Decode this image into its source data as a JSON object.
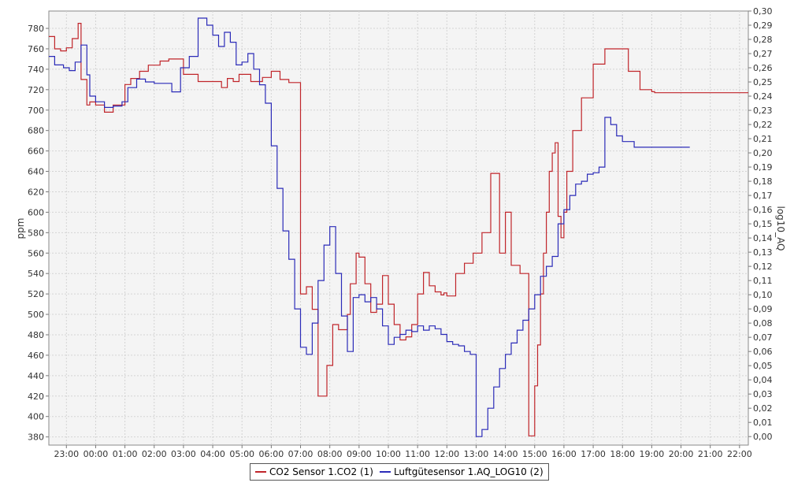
{
  "chart_data": {
    "type": "line",
    "title": "",
    "xlabel": "",
    "ylabel_left": "ppm",
    "ylabel_right": "log10_AQ",
    "grid": true,
    "legend_placement": "bottom-center",
    "x_tick_labels": [
      "23:00",
      "00:00",
      "01:00",
      "02:00",
      "03:00",
      "04:00",
      "05:00",
      "06:00",
      "07:00",
      "08:00",
      "09:00",
      "10:00",
      "11:00",
      "12:00",
      "13:00",
      "14:00",
      "15:00",
      "16:00",
      "17:00",
      "18:00",
      "19:00",
      "20:00",
      "21:00",
      "22:00"
    ],
    "x_range_hours": [
      22.4,
      46.3
    ],
    "y_left_range": [
      372,
      797
    ],
    "y_left_ticks": [
      "380",
      "400",
      "420",
      "440",
      "460",
      "480",
      "500",
      "520",
      "540",
      "560",
      "580",
      "600",
      "620",
      "640",
      "660",
      "680",
      "700",
      "720",
      "740",
      "760",
      "780"
    ],
    "y_right_range": [
      -0.006,
      0.3
    ],
    "y_right_ticks": [
      "0,00",
      "0,01",
      "0,02",
      "0,03",
      "0,04",
      "0,05",
      "0,06",
      "0,07",
      "0,08",
      "0,09",
      "0,10",
      "0,11",
      "0,12",
      "0,13",
      "0,14",
      "0,15",
      "0,16",
      "0,17",
      "0,18",
      "0,19",
      "0,20",
      "0,21",
      "0,22",
      "0,23",
      "0,24",
      "0,25",
      "0,26",
      "0,27",
      "0,28",
      "0,29",
      "0,30"
    ],
    "series": [
      {
        "name": "CO2 Sensor 1.CO2 (1)",
        "axis": "left",
        "color": "#c0252a",
        "x": [
          22.4,
          22.6,
          22.8,
          23.0,
          23.2,
          23.4,
          23.5,
          23.7,
          23.8,
          24.0,
          24.3,
          24.6,
          25.0,
          25.2,
          25.5,
          25.8,
          26.2,
          26.5,
          27.0,
          27.5,
          28.0,
          28.3,
          28.5,
          28.7,
          28.9,
          29.3,
          29.7,
          30.0,
          30.3,
          30.6,
          31.0,
          31.2,
          31.4,
          31.6,
          31.9,
          32.1,
          32.3,
          32.6,
          32.7,
          32.9,
          33.0,
          33.2,
          33.4,
          33.6,
          33.8,
          34.0,
          34.2,
          34.4,
          34.6,
          34.8,
          35.0,
          35.2,
          35.4,
          35.6,
          35.8,
          35.9,
          36.0,
          36.3,
          36.6,
          36.9,
          37.2,
          37.5,
          37.8,
          38.0,
          38.2,
          38.5,
          38.8,
          39.0,
          39.1,
          39.2,
          39.3,
          39.4,
          39.5,
          39.6,
          39.7,
          39.8,
          39.9,
          40.0,
          40.1,
          40.3,
          40.6,
          41.0,
          41.4,
          41.8,
          42.2,
          42.6,
          43.0,
          43.1,
          43.3,
          43.5,
          43.8,
          44.0,
          44.3,
          44.6,
          44.9,
          45.0,
          45.2,
          45.4,
          45.6,
          45.8,
          46.0,
          46.3
        ],
        "y": [
          772,
          760,
          758,
          761,
          770,
          785,
          730,
          705,
          708,
          705,
          698,
          705,
          725,
          731,
          738,
          744,
          748,
          750,
          735,
          728,
          728,
          722,
          731,
          728,
          735,
          728,
          732,
          738,
          730,
          727,
          520,
          527,
          505,
          420,
          450,
          490,
          485,
          500,
          530,
          560,
          556,
          530,
          502,
          510,
          538,
          510,
          490,
          475,
          478,
          490,
          520,
          541,
          528,
          522,
          519,
          521,
          518,
          540,
          550,
          560,
          580,
          638,
          560,
          600,
          548,
          540,
          381,
          430,
          470,
          520,
          560,
          600,
          640,
          658,
          668,
          596,
          575,
          600,
          640,
          680,
          712,
          745,
          760,
          760,
          738,
          720,
          718,
          717,
          717,
          717,
          717,
          717,
          717,
          717,
          717,
          717,
          717,
          717,
          717,
          717,
          717,
          717
        ]
      },
      {
        "name": "Luftgütesensor 1.AQ_LOG10 (2)",
        "axis": "right",
        "color": "#2b2bb8",
        "x": [
          22.4,
          22.6,
          22.9,
          23.1,
          23.3,
          23.5,
          23.7,
          23.8,
          24.0,
          24.3,
          24.6,
          24.9,
          25.1,
          25.4,
          25.7,
          26.0,
          26.3,
          26.6,
          26.9,
          27.2,
          27.5,
          27.8,
          28.0,
          28.2,
          28.4,
          28.6,
          28.8,
          29.0,
          29.2,
          29.4,
          29.6,
          29.8,
          30.0,
          30.2,
          30.4,
          30.6,
          30.8,
          31.0,
          31.2,
          31.4,
          31.6,
          31.8,
          32.0,
          32.2,
          32.4,
          32.6,
          32.8,
          33.0,
          33.2,
          33.4,
          33.6,
          33.8,
          34.0,
          34.2,
          34.4,
          34.6,
          34.8,
          35.0,
          35.2,
          35.4,
          35.6,
          35.8,
          36.0,
          36.2,
          36.4,
          36.6,
          36.8,
          37.0,
          37.2,
          37.4,
          37.6,
          37.8,
          38.0,
          38.2,
          38.4,
          38.6,
          38.8,
          39.0,
          39.2,
          39.4,
          39.6,
          39.8,
          40.0,
          40.2,
          40.4,
          40.6,
          40.8,
          41.0,
          41.2,
          41.4,
          41.6,
          41.8,
          42.0,
          42.2,
          42.4,
          42.6,
          42.8,
          43.0,
          43.2,
          43.4,
          43.6,
          43.8,
          44.0,
          44.3
        ],
        "y": [
          0.268,
          0.262,
          0.26,
          0.258,
          0.264,
          0.276,
          0.255,
          0.24,
          0.236,
          0.232,
          0.233,
          0.236,
          0.246,
          0.252,
          0.25,
          0.249,
          0.249,
          0.243,
          0.26,
          0.268,
          0.295,
          0.29,
          0.283,
          0.275,
          0.285,
          0.278,
          0.262,
          0.264,
          0.27,
          0.259,
          0.248,
          0.235,
          0.205,
          0.175,
          0.145,
          0.125,
          0.09,
          0.063,
          0.058,
          0.08,
          0.11,
          0.135,
          0.148,
          0.115,
          0.085,
          0.06,
          0.098,
          0.1,
          0.095,
          0.098,
          0.09,
          0.078,
          0.065,
          0.07,
          0.072,
          0.075,
          0.074,
          0.078,
          0.075,
          0.078,
          0.076,
          0.072,
          0.067,
          0.065,
          0.064,
          0.06,
          0.058,
          0.0,
          0.005,
          0.02,
          0.035,
          0.048,
          0.058,
          0.066,
          0.075,
          0.082,
          0.09,
          0.1,
          0.113,
          0.12,
          0.127,
          0.15,
          0.16,
          0.17,
          0.178,
          0.18,
          0.185,
          0.186,
          0.19,
          0.225,
          0.22,
          0.212,
          0.208,
          0.208,
          0.204,
          0.204,
          0.204,
          0.204,
          0.204,
          0.204,
          0.204,
          0.204,
          0.204,
          0.204
        ]
      }
    ]
  }
}
